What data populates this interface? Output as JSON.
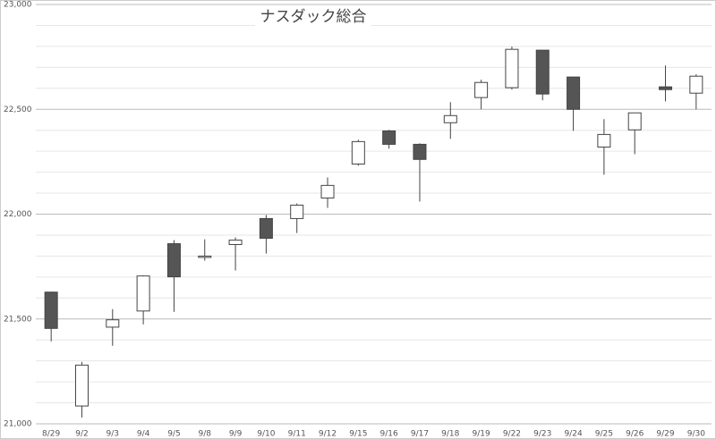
{
  "chart_data": {
    "type": "candlestick",
    "title": "ナスダック総合",
    "x": [
      "8/29",
      "9/2",
      "9/3",
      "9/4",
      "9/5",
      "9/8",
      "9/9",
      "9/10",
      "9/11",
      "9/12",
      "9/15",
      "9/16",
      "9/17",
      "9/18",
      "9/19",
      "9/22",
      "9/23",
      "9/24",
      "9/25",
      "9/26",
      "9/29",
      "9/30"
    ],
    "open": [
      21628,
      21085,
      21461,
      21538,
      21859,
      21798,
      21855,
      21979,
      21979,
      22077,
      22239,
      22397,
      22333,
      22436,
      22556,
      22603,
      22782,
      22654,
      22320,
      22402,
      22607,
      22577
    ],
    "high": [
      21630,
      21295,
      21547,
      21708,
      21876,
      21880,
      21889,
      21996,
      22051,
      22175,
      22355,
      22402,
      22338,
      22534,
      22641,
      22799,
      22782,
      22654,
      22453,
      22483,
      22709,
      22667
    ],
    "low": [
      21393,
      21030,
      21372,
      21474,
      21534,
      21778,
      21731,
      21812,
      21910,
      22030,
      22231,
      22312,
      22060,
      22359,
      22500,
      22594,
      22543,
      22397,
      22188,
      22286,
      22538,
      22500
    ],
    "close": [
      21455,
      21280,
      21496,
      21705,
      21701,
      21800,
      21876,
      21885,
      22043,
      22137,
      22346,
      22333,
      22261,
      22470,
      22628,
      22786,
      22573,
      22500,
      22380,
      22483,
      22594,
      22658
    ],
    "up_color": "#ffffff",
    "down_color": "#555555",
    "ylim": [
      21000,
      23000
    ],
    "yticks": [
      {
        "value": 21000,
        "label": "21,000"
      },
      {
        "value": 21500,
        "label": "21,500"
      },
      {
        "value": 22000,
        "label": "22,000"
      },
      {
        "value": 22500,
        "label": "22,500"
      },
      {
        "value": 23000,
        "label": "23,000"
      }
    ],
    "grid": true
  }
}
